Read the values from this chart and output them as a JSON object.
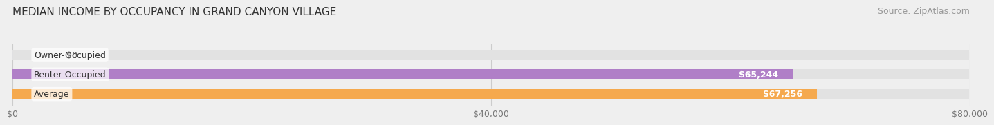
{
  "title": "MEDIAN INCOME BY OCCUPANCY IN GRAND CANYON VILLAGE",
  "source": "Source: ZipAtlas.com",
  "categories": [
    "Owner-Occupied",
    "Renter-Occupied",
    "Average"
  ],
  "values": [
    0,
    65244,
    67256
  ],
  "bar_colors": [
    "#7fd8e8",
    "#b07fc7",
    "#f5a94e"
  ],
  "value_labels": [
    "$0",
    "$65,244",
    "$67,256"
  ],
  "xlim": [
    0,
    80000
  ],
  "xticks": [
    0,
    40000,
    80000
  ],
  "xtick_labels": [
    "$0",
    "$40,000",
    "$80,000"
  ],
  "background_color": "#efefef",
  "bar_background_color": "#e2e2e2",
  "title_fontsize": 11,
  "source_fontsize": 9,
  "label_fontsize": 9,
  "value_fontsize": 9
}
